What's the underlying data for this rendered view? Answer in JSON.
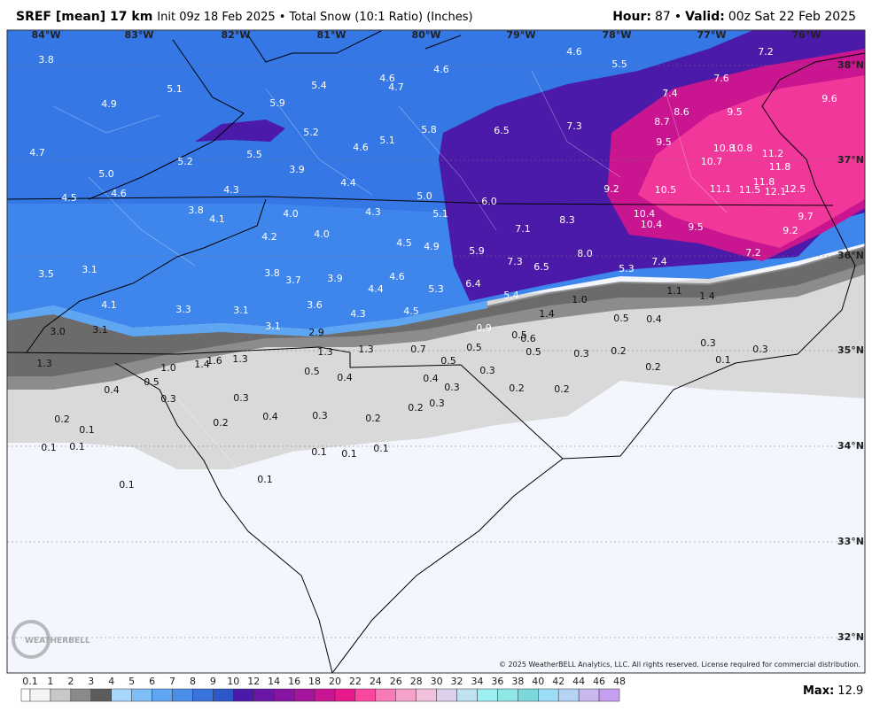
{
  "header": {
    "model": "SREF [mean] 17 km",
    "description": "Init 09z 18 Feb 2025 • Total Snow (10:1 Ratio) (Inches)",
    "hour_label": "Hour:",
    "hour": "87",
    "separator": "•",
    "valid_label": "Valid:",
    "valid": "00z Sat 22 Feb 2025"
  },
  "map": {
    "longitudes": [
      "84°W",
      "83°W",
      "82°W",
      "81°W",
      "80°W",
      "79°W",
      "78°W",
      "77°W",
      "76°W"
    ],
    "latitudes": [
      "38°N",
      "37°N",
      "36°N",
      "35°N",
      "34°N",
      "33°N",
      "32°N"
    ],
    "labels": [
      "3.8",
      "5.1",
      "4.9",
      "5.9",
      "5.4",
      "4.6",
      "4.7",
      "4.6",
      "4.6",
      "5.5",
      "7.2",
      "7.6",
      "7.4",
      "9.6",
      "8.7",
      "8.6",
      "9.5",
      "7.3",
      "6.5",
      "5.8",
      "5.2",
      "4.6",
      "5.1",
      "5.5",
      "5.2",
      "4.7",
      "5.0",
      "3.9",
      "9.5",
      "10.8",
      "10.8",
      "11.2",
      "10.7",
      "11.8",
      "4.4",
      "4.3",
      "4.6",
      "4.5",
      "5.0",
      "6.0",
      "9.2",
      "10.5",
      "11.1",
      "11.5",
      "11.8",
      "12.1",
      "12.5",
      "3.8",
      "4.1",
      "4.0",
      "4.3",
      "5.1",
      "10.4",
      "10.4",
      "8.3",
      "9.5",
      "9.7",
      "9.2",
      "7.1",
      "4.2",
      "4.0",
      "4.5",
      "4.9",
      "5.9",
      "7.3",
      "6.5",
      "8.0",
      "7.2",
      "7.4",
      "5.3",
      "3.5",
      "3.1",
      "3.8",
      "3.7",
      "3.9",
      "4.6",
      "4.4",
      "5.3",
      "6.4",
      "5.4",
      "1.1",
      "1.4",
      "1.0",
      "4.1",
      "3.3",
      "3.1",
      "3.6",
      "4.3",
      "4.5",
      "1.4",
      "0.5",
      "0.4",
      "3.0",
      "3.1",
      "3.1",
      "2.9",
      "0.9",
      "0.5",
      "0.6",
      "0.3",
      "0.3",
      "0.7",
      "1.3",
      "1.3",
      "0.5",
      "0.5",
      "0.3",
      "0.2",
      "0.1",
      "1.3",
      "1.6",
      "1.3",
      "1.4",
      "1.0",
      "0.5",
      "0.5",
      "0.4",
      "0.3",
      "0.2",
      "0.4",
      "0.3",
      "0.4",
      "0.5",
      "0.3",
      "0.3",
      "0.2",
      "0.2",
      "0.2",
      "0.3",
      "0.4",
      "0.3",
      "0.2",
      "0.2",
      "0.2",
      "0.1",
      "0.1",
      "0.1",
      "0.1",
      "0.1",
      "0.1",
      "0.1",
      "0.1"
    ],
    "copyright": "© 2025 WeatherBELL Analytics, LLC. All rights reserved. License required for commercial distribution.",
    "logo": "WEATHERBELL"
  },
  "legend": {
    "ticks": [
      "0.1",
      "1",
      "2",
      "3",
      "4",
      "5",
      "6",
      "7",
      "8",
      "9",
      "10",
      "12",
      "14",
      "16",
      "18",
      "20",
      "22",
      "24",
      "26",
      "28",
      "30",
      "32",
      "34",
      "36",
      "38",
      "40",
      "42",
      "44",
      "46",
      "48"
    ],
    "colors": [
      "#f4f4f4",
      "#c8c8c8",
      "#8a8a8a",
      "#5c5c5c",
      "#a9d6fb",
      "#7fbdf7",
      "#5fa6f2",
      "#4a8ee8",
      "#3a72dc",
      "#2d58c8",
      "#4b1aa8",
      "#6a16a6",
      "#8714a2",
      "#a5149c",
      "#c71694",
      "#e8198c",
      "#f9479f",
      "#f87ab6",
      "#f6a3cb",
      "#f1c2dc",
      "#dcd0ec",
      "#c0e3f2",
      "#9ff0f2",
      "#8ee8e6",
      "#7dd8dc",
      "#9ddcf6",
      "#b5d3f5",
      "#c9b8f0",
      "#c79ff0"
    ],
    "max_label": "Max:",
    "max": "12.9"
  }
}
